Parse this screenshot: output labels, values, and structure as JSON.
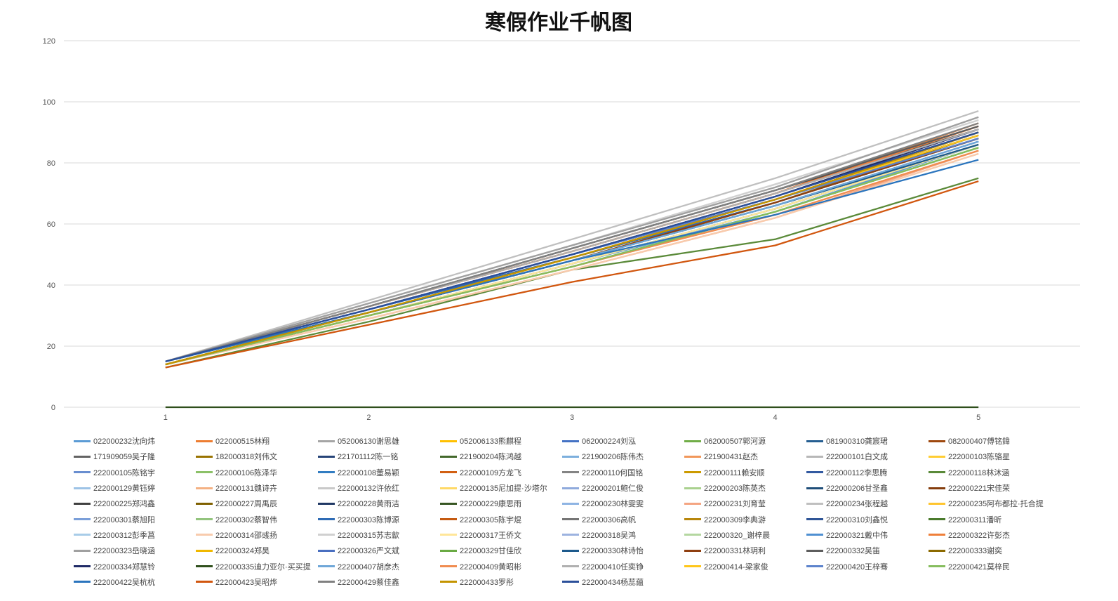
{
  "chart_data": {
    "type": "line",
    "title": "寒假作业千帆图",
    "xlabel": "",
    "ylabel": "",
    "x": [
      1,
      2,
      3,
      4,
      5
    ],
    "ylim": [
      0,
      120
    ],
    "yticks": [
      0,
      20,
      40,
      60,
      80,
      100,
      120
    ],
    "grid": true,
    "legend_position": "bottom",
    "series": [
      {
        "name": "022000232沈向炜",
        "color": "#5b9bd5",
        "values": [
          14,
          30,
          47,
          64,
          86
        ]
      },
      {
        "name": "022000515林翔",
        "color": "#ed7d31",
        "values": [
          15,
          33,
          51,
          70,
          93
        ]
      },
      {
        "name": "052006130谢思雄",
        "color": "#a5a5a5",
        "values": [
          15,
          34,
          53,
          72,
          95
        ]
      },
      {
        "name": "052006133熊麒程",
        "color": "#ffc000",
        "values": [
          14,
          31,
          49,
          68,
          90
        ]
      },
      {
        "name": "062000224刘泓",
        "color": "#4472c4",
        "values": [
          15,
          32,
          50,
          68,
          89
        ]
      },
      {
        "name": "062000507郭河源",
        "color": "#70ad47",
        "values": [
          14,
          30,
          46,
          64,
          85
        ]
      },
      {
        "name": "081900310龚宸珺",
        "color": "#255e91",
        "values": [
          15,
          31,
          48,
          66,
          86
        ]
      },
      {
        "name": "082000407傅铭鍏",
        "color": "#9e480e",
        "values": [
          14,
          31,
          48,
          67,
          88
        ]
      },
      {
        "name": "171909059吴子隆",
        "color": "#636363",
        "values": [
          15,
          33,
          52,
          71,
          92
        ]
      },
      {
        "name": "182000318刘伟文",
        "color": "#997300",
        "values": [
          14,
          31,
          49,
          67,
          89
        ]
      },
      {
        "name": "221701112陈一铭",
        "color": "#264478",
        "values": [
          15,
          32,
          50,
          69,
          90
        ]
      },
      {
        "name": "221900204陈鸿越",
        "color": "#43682b",
        "values": [
          14,
          30,
          47,
          65,
          86
        ]
      },
      {
        "name": "221900206陈伟杰",
        "color": "#7cafdd",
        "values": [
          14,
          31,
          48,
          66,
          87
        ]
      },
      {
        "name": "221900431赵杰",
        "color": "#f1975a",
        "values": [
          14,
          30,
          46,
          63,
          84
        ]
      },
      {
        "name": "222000101白文成",
        "color": "#b7b7b7",
        "values": [
          15,
          33,
          51,
          70,
          91
        ]
      },
      {
        "name": "222000103陈骆星",
        "color": "#ffcd33",
        "values": [
          14,
          31,
          49,
          68,
          89
        ]
      },
      {
        "name": "222000105陈铭宇",
        "color": "#698ed0",
        "values": [
          15,
          32,
          50,
          68,
          88
        ]
      },
      {
        "name": "222000106陈泽华",
        "color": "#8cc168",
        "values": [
          14,
          30,
          46,
          64,
          85
        ]
      },
      {
        "name": "222000108董易颖",
        "color": "#327dc2",
        "values": [
          15,
          32,
          49,
          67,
          88
        ]
      },
      {
        "name": "222000109方龙飞",
        "color": "#d26012",
        "values": [
          15,
          33,
          51,
          70,
          92
        ]
      },
      {
        "name": "222000110何国铭",
        "color": "#848484",
        "values": [
          15,
          32,
          50,
          69,
          90
        ]
      },
      {
        "name": "222000111赖安顺",
        "color": "#cc9a00",
        "values": [
          14,
          31,
          49,
          68,
          89
        ]
      },
      {
        "name": "222000112李思腾",
        "color": "#335aa1",
        "values": [
          15,
          32,
          49,
          67,
          88
        ]
      },
      {
        "name": "222000118林沐涵",
        "color": "#5a8a39",
        "values": [
          13,
          28,
          45,
          55,
          75
        ]
      },
      {
        "name": "222000129黄钰婷",
        "color": "#9dc3e6",
        "values": [
          14,
          30,
          47,
          65,
          86
        ]
      },
      {
        "name": "222000131魏诗卉",
        "color": "#f4b183",
        "values": [
          14,
          29,
          45,
          62,
          83
        ]
      },
      {
        "name": "222000132许依红",
        "color": "#c9c9c9",
        "values": [
          15,
          34,
          53,
          73,
          94
        ]
      },
      {
        "name": "222000135尼加提·沙塔尔",
        "color": "#ffd966",
        "values": [
          14,
          30,
          47,
          65,
          86
        ]
      },
      {
        "name": "222000201鲍仁俊",
        "color": "#8faadc",
        "values": [
          15,
          32,
          50,
          68,
          89
        ]
      },
      {
        "name": "222000203陈英杰",
        "color": "#a9d18e",
        "values": [
          14,
          30,
          46,
          64,
          85
        ]
      },
      {
        "name": "222000206甘圣鑫",
        "color": "#1f4e79",
        "values": [
          15,
          31,
          48,
          66,
          87
        ]
      },
      {
        "name": "222000221宋佳荣",
        "color": "#843c0c",
        "values": [
          14,
          31,
          48,
          67,
          88
        ]
      },
      {
        "name": "222000225郑鸿鑫",
        "color": "#404040",
        "values": [
          15,
          33,
          52,
          71,
          91
        ]
      },
      {
        "name": "222000227周禹辰",
        "color": "#7f6000",
        "values": [
          14,
          31,
          49,
          68,
          89
        ]
      },
      {
        "name": "222000228黄雨洁",
        "color": "#203864",
        "values": [
          15,
          32,
          50,
          68,
          90
        ]
      },
      {
        "name": "222000229康思雨",
        "color": "#375623",
        "values": [
          14,
          30,
          47,
          65,
          86
        ]
      },
      {
        "name": "222000230林雯雯",
        "color": "#8eb4e3",
        "values": [
          14,
          31,
          48,
          66,
          87
        ]
      },
      {
        "name": "222000231刘育莹",
        "color": "#f4a582",
        "values": [
          14,
          29,
          45,
          62,
          84
        ]
      },
      {
        "name": "222000234张程越",
        "color": "#bfbfbf",
        "values": [
          15,
          35,
          55,
          75,
          97
        ]
      },
      {
        "name": "222000235阿布都拉·托合提",
        "color": "#ffc52e",
        "values": [
          14,
          31,
          48,
          67,
          88
        ]
      },
      {
        "name": "222000301蔡旭阳",
        "color": "#7a9fd9",
        "values": [
          15,
          32,
          50,
          68,
          89
        ]
      },
      {
        "name": "222000302蔡智伟",
        "color": "#93c47d",
        "values": [
          14,
          30,
          46,
          64,
          85
        ]
      },
      {
        "name": "222000303陈博源",
        "color": "#2e6bb5",
        "values": [
          15,
          32,
          49,
          67,
          88
        ]
      },
      {
        "name": "222000305陈宇焜",
        "color": "#c55a11",
        "values": [
          15,
          33,
          51,
          70,
          91
        ]
      },
      {
        "name": "222000306高帆",
        "color": "#757575",
        "values": [
          15,
          33,
          52,
          71,
          92
        ]
      },
      {
        "name": "222000309李典游",
        "color": "#b8860b",
        "values": [
          14,
          31,
          49,
          68,
          90
        ]
      },
      {
        "name": "222000310刘鑫悦",
        "color": "#2f5597",
        "values": [
          15,
          32,
          50,
          69,
          91
        ]
      },
      {
        "name": "222000311潘昕",
        "color": "#4a7a2c",
        "values": [
          14,
          30,
          47,
          65,
          86
        ]
      },
      {
        "name": "222000312彭季菖",
        "color": "#a8cce8",
        "values": [
          14,
          30,
          47,
          65,
          86
        ]
      },
      {
        "name": "222000314邵彧扬",
        "color": "#f8cbad",
        "values": [
          14,
          29,
          45,
          62,
          83
        ]
      },
      {
        "name": "222000315苏志歙",
        "color": "#d0d0d0",
        "values": [
          15,
          34,
          53,
          73,
          94
        ]
      },
      {
        "name": "222000317王侨文",
        "color": "#ffe699",
        "values": [
          14,
          30,
          47,
          65,
          86
        ]
      },
      {
        "name": "222000318吴鸿",
        "color": "#9db3e0",
        "values": [
          15,
          32,
          50,
          68,
          89
        ]
      },
      {
        "name": "222000320_谢梓晨",
        "color": "#b4d7a0",
        "values": [
          14,
          30,
          46,
          64,
          85
        ]
      },
      {
        "name": "222000321戴中伟",
        "color": "#4f90d2",
        "values": [
          15,
          31,
          48,
          66,
          87
        ]
      },
      {
        "name": "222000322许彭杰",
        "color": "#ef7f3a",
        "values": [
          15,
          33,
          51,
          70,
          92
        ]
      },
      {
        "name": "222000323岳晓涵",
        "color": "#a0a0a0",
        "values": [
          15,
          34,
          53,
          72,
          95
        ]
      },
      {
        "name": "222000324郑昊",
        "color": "#f0b800",
        "values": [
          14,
          31,
          49,
          68,
          90
        ]
      },
      {
        "name": "222000326严文斌",
        "color": "#4a6fc0",
        "values": [
          15,
          32,
          50,
          68,
          89
        ]
      },
      {
        "name": "222000329甘佳欣",
        "color": "#6aaa44",
        "values": [
          14,
          30,
          46,
          64,
          85
        ]
      },
      {
        "name": "222000330林诗怡",
        "color": "#1d5a8c",
        "values": [
          15,
          31,
          48,
          66,
          86
        ]
      },
      {
        "name": "222000331林玥利",
        "color": "#8f3f10",
        "values": [
          14,
          31,
          48,
          67,
          88
        ]
      },
      {
        "name": "222000332吴笛",
        "color": "#5e5e5e",
        "values": [
          15,
          33,
          52,
          71,
          92
        ]
      },
      {
        "name": "222000333谢奕",
        "color": "#8c6a00",
        "values": [
          14,
          31,
          49,
          68,
          89
        ]
      },
      {
        "name": "222000334郑慧铃",
        "color": "#1f2a66",
        "values": [
          15,
          32,
          50,
          69,
          91
        ]
      },
      {
        "name": "222000335迪力亚尔·买买提",
        "color": "#2f4f1c",
        "values": [
          0,
          0,
          0,
          0,
          0
        ]
      },
      {
        "name": "222000407胡彦杰",
        "color": "#6fa7d8",
        "values": [
          14,
          31,
          48,
          66,
          87
        ]
      },
      {
        "name": "222000409黄昭彬",
        "color": "#f08c50",
        "values": [
          14,
          30,
          46,
          63,
          84
        ]
      },
      {
        "name": "222000410任奕铮",
        "color": "#b0b0b0",
        "values": [
          15,
          33,
          51,
          70,
          91
        ]
      },
      {
        "name": "222000414-梁家俊",
        "color": "#ffc61a",
        "values": [
          14,
          31,
          49,
          68,
          89
        ]
      },
      {
        "name": "222000420王梓骞",
        "color": "#5d83cc",
        "values": [
          15,
          32,
          50,
          68,
          88
        ]
      },
      {
        "name": "222000421莫梓民",
        "color": "#86bd5e",
        "values": [
          14,
          30,
          46,
          64,
          85
        ]
      },
      {
        "name": "222000422吴杭杭",
        "color": "#2a74bd",
        "values": [
          15,
          31,
          48,
          63,
          81
        ]
      },
      {
        "name": "222000423吴昭烨",
        "color": "#d1560e",
        "values": [
          13,
          27,
          41,
          53,
          74
        ]
      },
      {
        "name": "222000429蔡佳鑫",
        "color": "#808080",
        "values": [
          15,
          33,
          52,
          71,
          93
        ]
      },
      {
        "name": "222000433罗彤",
        "color": "#c49400",
        "values": [
          14,
          31,
          49,
          68,
          90
        ]
      },
      {
        "name": "222000434杨蕊藴",
        "color": "#2b4f9a",
        "values": [
          15,
          32,
          50,
          69,
          90
        ]
      }
    ]
  }
}
